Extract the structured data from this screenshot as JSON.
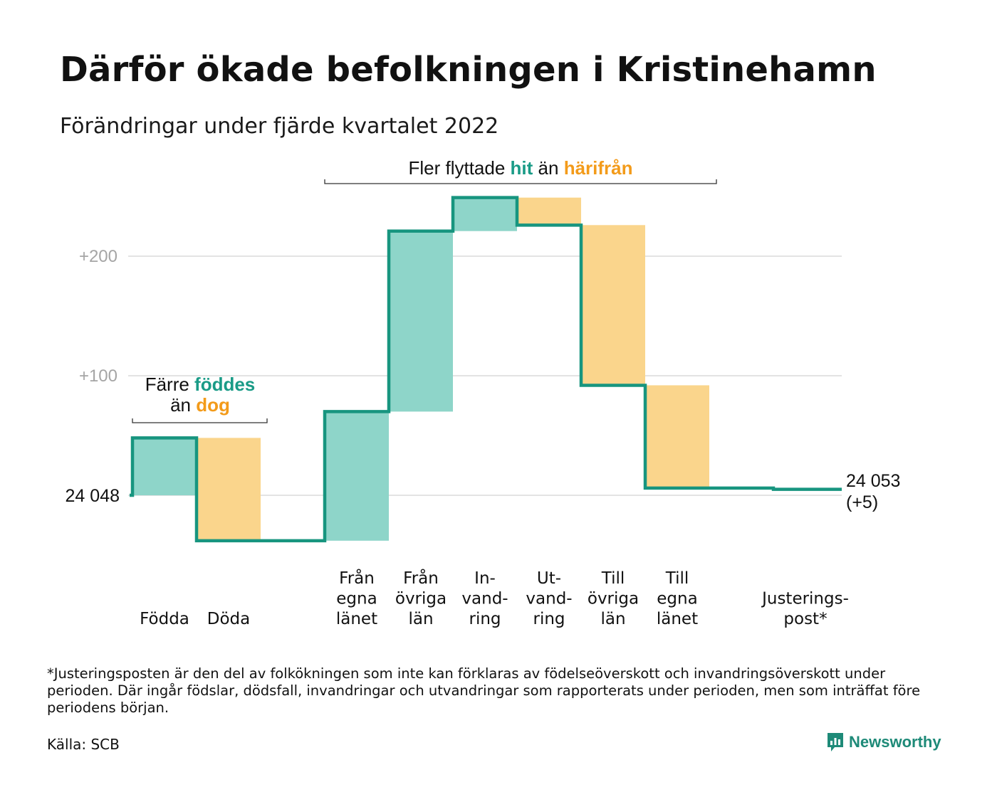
{
  "title": "Därför ökade befolkningen i Kristinehamn",
  "subtitle": "Förändringar under fjärde kvartalet 2022",
  "colors": {
    "increase": "#8ed5c9",
    "decrease": "#fad58c",
    "line": "#17957f",
    "grid": "#e3e3e3",
    "teal_text": "#1a9b87",
    "orange_text": "#f39b1a"
  },
  "annotations": {
    "births_deaths": {
      "line1_pre": "Färre ",
      "line1_hl": "föddes",
      "line2_pre": "än ",
      "line2_hl": "dog"
    },
    "migration": {
      "pre": "Fler flyttade ",
      "hl1": "hit",
      "mid": " än ",
      "hl2": "härifrån"
    }
  },
  "chart_data": {
    "type": "waterfall",
    "title": "Därför ökade befolkningen i Kristinehamn",
    "subtitle": "Förändringar under fjärde kvartalet 2022",
    "start_value": 24048,
    "start_label": "24 048",
    "end_label_line1": "24 053",
    "end_label_line2": "(+5)",
    "y_ticks": [
      {
        "value": 200,
        "label": "+200"
      },
      {
        "value": 100,
        "label": "+100"
      }
    ],
    "ylim": [
      -60,
      250
    ],
    "categories": [
      {
        "label": [
          "Födda"
        ],
        "change": 48
      },
      {
        "label": [
          "Döda"
        ],
        "change": -86
      },
      {
        "label": [],
        "change": 0
      },
      {
        "label": [
          "Från",
          "egna",
          "länet"
        ],
        "change": 108
      },
      {
        "label": [
          "Från",
          "övriga",
          "län"
        ],
        "change": 151
      },
      {
        "label": [
          "In-",
          "vand-",
          "ring"
        ],
        "change": 28
      },
      {
        "label": [
          "Ut-",
          "vand-",
          "ring"
        ],
        "change": -23
      },
      {
        "label": [
          "Till",
          "övriga",
          "län"
        ],
        "change": -134
      },
      {
        "label": [
          "Till",
          "egna",
          "länet"
        ],
        "change": -86
      },
      {
        "label": [],
        "change": 0
      },
      {
        "label": [
          "Justerings-",
          "post*"
        ],
        "change": -1
      }
    ]
  },
  "footnote": "*Justeringsposten är den del av folkökningen som inte kan förklaras av födelseöverskott och invandringsöverskott under perioden. Där ingår födslar, dödsfall, invandringar och utvandringar som rapporterats under perioden, men som inträffat före periodens början.",
  "source": "Källa: SCB",
  "brand": {
    "name": "Newsworthy",
    "icon": "newsworthy-logo-icon"
  }
}
